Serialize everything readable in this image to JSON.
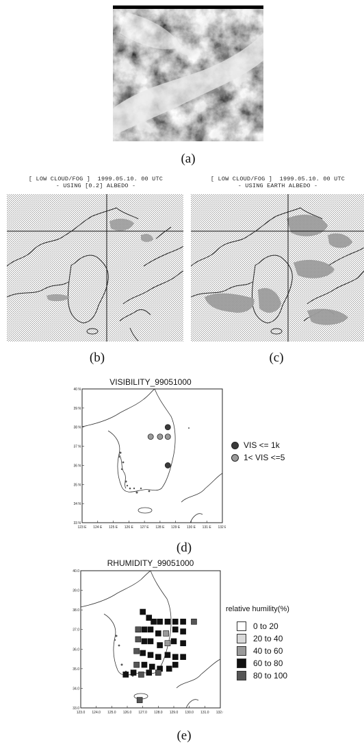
{
  "panels": {
    "a": {
      "caption": "(a)"
    },
    "b": {
      "caption": "(b)",
      "header_line1": "[ LOW CLOUD/FOG ]  1999.05.10. 00 UTC",
      "header_line2": "- USING [0.2] ALBEDO -"
    },
    "c": {
      "caption": "(c)",
      "header_line1": "[ LOW CLOUD/FOG ]  1999.05.10. 00 UTC",
      "header_line2": "- USING EARTH ALBEDO -"
    },
    "d": {
      "caption": "(d)",
      "title": "VISIBILITY_99051000",
      "legend": [
        {
          "label": "VIS <= 1k",
          "color": "#3a3a3a"
        },
        {
          "label": "1< VIS <=5",
          "color": "#9a9a9a"
        }
      ],
      "y_ticks": [
        "40 N",
        "39 N",
        "38 N",
        "37 N",
        "36 N",
        "35 N",
        "34 N",
        "33 N"
      ],
      "x_ticks": [
        "123 E",
        "124 E",
        "125 E",
        "126 E",
        "127 E",
        "128 E",
        "129 E",
        "130 E",
        "131 E",
        "132 E"
      ]
    },
    "e": {
      "caption": "(e)",
      "title": "RHUMIDITY_99051000",
      "legend_title": "relative humility(%)",
      "legend": [
        {
          "label": "0 to 20",
          "color": "#ffffff"
        },
        {
          "label": "20 to 40",
          "color": "#d9d9d9"
        },
        {
          "label": "40 to 60",
          "color": "#9a9a9a"
        },
        {
          "label": "60 to 80",
          "color": "#111111"
        },
        {
          "label": "80 to 100",
          "color": "#555555"
        }
      ],
      "y_ticks": [
        "40.0",
        "39.0",
        "38.0",
        "37.0",
        "36.0",
        "35.0",
        "34.0",
        "33.0"
      ],
      "x_ticks": [
        "123.0",
        "124.0",
        "125.0",
        "126.0",
        "127.0",
        "128.0",
        "129.0",
        "130.0",
        "131.0",
        "132.0"
      ]
    }
  },
  "chart_data": [
    {
      "type": "scatter",
      "title": "VISIBILITY_99051000",
      "xlim": [
        123,
        132
      ],
      "ylim": [
        33,
        40
      ],
      "series": [
        {
          "name": "VIS <= 1k",
          "points": [
            [
              128.5,
              38.0
            ],
            [
              128.5,
              36.0
            ]
          ]
        },
        {
          "name": "1< VIS <=5",
          "points": [
            [
              127.4,
              37.5
            ],
            [
              128.0,
              37.5
            ],
            [
              128.5,
              37.5
            ]
          ]
        }
      ]
    },
    {
      "type": "heatmap",
      "title": "RHUMIDITY_99051000",
      "xlim": [
        123,
        132
      ],
      "ylim": [
        33,
        40
      ],
      "points": [
        [
          127.0,
          37.9,
          "60 to 80"
        ],
        [
          127.4,
          37.6,
          "60 to 80"
        ],
        [
          127.7,
          37.4,
          "60 to 80"
        ],
        [
          128.1,
          37.4,
          "60 to 80"
        ],
        [
          128.6,
          37.4,
          "60 to 80"
        ],
        [
          129.1,
          37.4,
          "60 to 80"
        ],
        [
          129.6,
          37.4,
          "60 to 80"
        ],
        [
          130.3,
          37.4,
          "80 to 100"
        ],
        [
          126.7,
          37.0,
          "80 to 100"
        ],
        [
          127.1,
          37.0,
          "60 to 80"
        ],
        [
          127.5,
          37.0,
          "60 to 80"
        ],
        [
          128.0,
          36.8,
          "60 to 80"
        ],
        [
          128.5,
          36.8,
          "40 to 60"
        ],
        [
          129.1,
          37.0,
          "60 to 80"
        ],
        [
          129.6,
          36.9,
          "60 to 80"
        ],
        [
          126.7,
          36.5,
          "80 to 100"
        ],
        [
          127.1,
          36.4,
          "60 to 80"
        ],
        [
          127.5,
          36.4,
          "60 to 80"
        ],
        [
          128.1,
          36.2,
          "60 to 80"
        ],
        [
          128.6,
          36.3,
          "40 to 60"
        ],
        [
          129.0,
          36.4,
          "60 to 80"
        ],
        [
          129.6,
          36.3,
          "60 to 80"
        ],
        [
          126.6,
          35.9,
          "80 to 100"
        ],
        [
          127.0,
          35.8,
          "60 to 80"
        ],
        [
          127.5,
          35.7,
          "60 to 80"
        ],
        [
          128.0,
          35.6,
          "60 to 80"
        ],
        [
          128.6,
          35.7,
          "60 to 80"
        ],
        [
          129.1,
          35.6,
          "60 to 80"
        ],
        [
          129.6,
          35.6,
          "60 to 80"
        ],
        [
          126.6,
          35.2,
          "80 to 100"
        ],
        [
          127.1,
          35.2,
          "60 to 80"
        ],
        [
          127.6,
          35.1,
          "60 to 80"
        ],
        [
          128.1,
          35.0,
          "60 to 80"
        ],
        [
          128.7,
          35.0,
          "60 to 80"
        ],
        [
          129.1,
          35.2,
          "60 to 80"
        ],
        [
          125.9,
          34.7,
          "60 to 80"
        ],
        [
          126.4,
          34.8,
          "60 to 80"
        ],
        [
          126.9,
          34.7,
          "80 to 100"
        ],
        [
          127.4,
          34.8,
          "60 to 80"
        ],
        [
          128.0,
          34.8,
          "80 to 100"
        ],
        [
          126.8,
          33.4,
          "80 to 100"
        ]
      ]
    }
  ]
}
